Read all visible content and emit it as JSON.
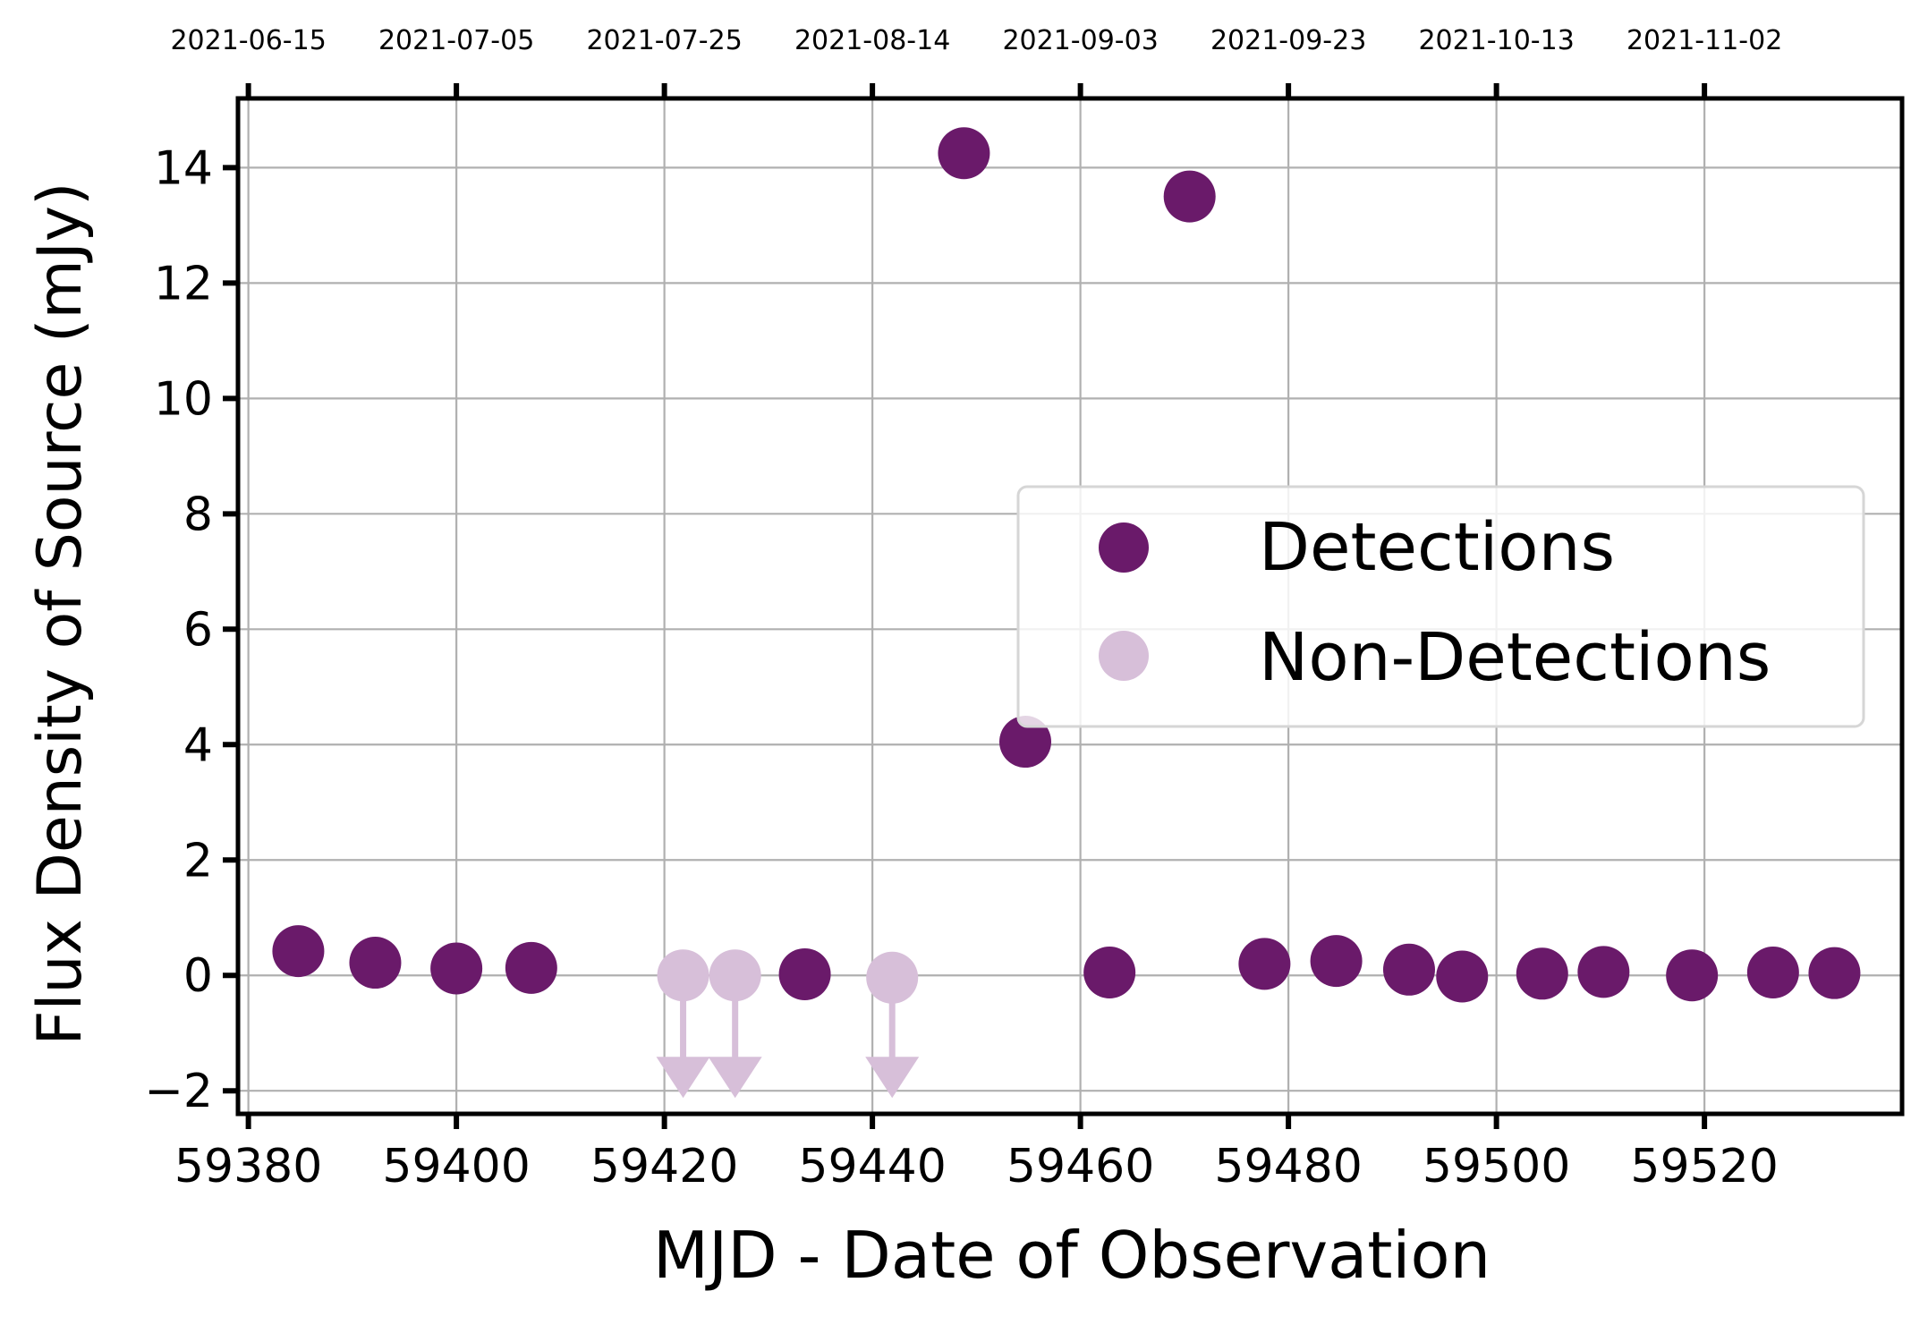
{
  "chart_data": {
    "type": "scatter",
    "title": "",
    "xlabel": "MJD - Date of Observation",
    "ylabel": "Flux Density of Source (mJy)",
    "xlim": [
      59379,
      59539
    ],
    "ylim": [
      -2.4,
      15.2
    ],
    "grid": true,
    "legend_position": "center-right",
    "x_ticks": [
      {
        "value": 59380,
        "label": "59380"
      },
      {
        "value": 59400,
        "label": "59400"
      },
      {
        "value": 59420,
        "label": "59420"
      },
      {
        "value": 59440,
        "label": "59440"
      },
      {
        "value": 59460,
        "label": "59460"
      },
      {
        "value": 59480,
        "label": "59480"
      },
      {
        "value": 59500,
        "label": "59500"
      },
      {
        "value": 59520,
        "label": "59520"
      }
    ],
    "top_x_ticks": [
      {
        "value": 59380,
        "label": "2021-06-15"
      },
      {
        "value": 59400,
        "label": "2021-07-05"
      },
      {
        "value": 59420,
        "label": "2021-07-25"
      },
      {
        "value": 59440,
        "label": "2021-08-14"
      },
      {
        "value": 59460,
        "label": "2021-09-03"
      },
      {
        "value": 59480,
        "label": "2021-09-23"
      },
      {
        "value": 59500,
        "label": "2021-10-13"
      },
      {
        "value": 59520,
        "label": "2021-11-02"
      }
    ],
    "y_ticks": [
      {
        "value": -2,
        "label": "−2"
      },
      {
        "value": 0,
        "label": "0"
      },
      {
        "value": 2,
        "label": "2"
      },
      {
        "value": 4,
        "label": "4"
      },
      {
        "value": 6,
        "label": "6"
      },
      {
        "value": 8,
        "label": "8"
      },
      {
        "value": 10,
        "label": "10"
      },
      {
        "value": 12,
        "label": "12"
      },
      {
        "value": 14,
        "label": "14"
      }
    ],
    "series": [
      {
        "name": "Detections",
        "color": "#6a1a6a",
        "marker": "circle",
        "points": [
          {
            "x": 59384.8,
            "y": 0.42
          },
          {
            "x": 59392.2,
            "y": 0.22
          },
          {
            "x": 59400.0,
            "y": 0.12
          },
          {
            "x": 59407.2,
            "y": 0.13
          },
          {
            "x": 59433.5,
            "y": 0.02
          },
          {
            "x": 59448.8,
            "y": 14.25
          },
          {
            "x": 59454.7,
            "y": 4.05
          },
          {
            "x": 59462.8,
            "y": 0.05
          },
          {
            "x": 59470.5,
            "y": 13.5
          },
          {
            "x": 59477.7,
            "y": 0.2
          },
          {
            "x": 59484.6,
            "y": 0.25
          },
          {
            "x": 59491.6,
            "y": 0.1
          },
          {
            "x": 59496.7,
            "y": -0.02
          },
          {
            "x": 59504.4,
            "y": 0.03
          },
          {
            "x": 59510.3,
            "y": 0.06
          },
          {
            "x": 59518.8,
            "y": 0.0
          },
          {
            "x": 59526.6,
            "y": 0.05
          },
          {
            "x": 59532.5,
            "y": 0.04
          }
        ]
      },
      {
        "name": "Non-Detections",
        "color": "#d7bfd9",
        "marker": "circle",
        "upper_limit_arrow_to": -2,
        "points": [
          {
            "x": 59421.8,
            "y": 0.0
          },
          {
            "x": 59426.8,
            "y": 0.0
          },
          {
            "x": 59441.9,
            "y": -0.04
          }
        ]
      }
    ]
  }
}
